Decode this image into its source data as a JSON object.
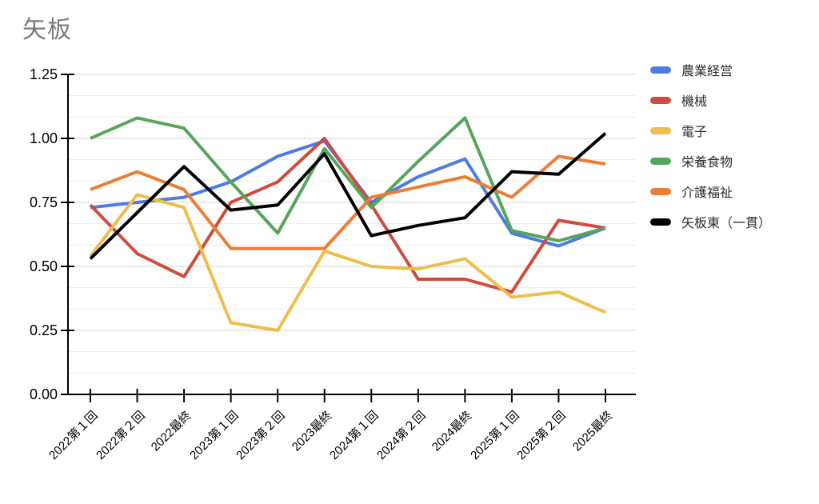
{
  "title": "矢板",
  "chart_data": {
    "type": "line",
    "title": "矢板",
    "categories": [
      "2022第１回",
      "2022第２回",
      "2022最終",
      "2023第１回",
      "2023第２回",
      "2023最終",
      "2024第１回",
      "2024第２回",
      "2024最終",
      "2025第１回",
      "2025第２回",
      "2025最終"
    ],
    "series": [
      {
        "name": "農業経営",
        "color": "#4D7CE3",
        "values": [
          0.73,
          0.75,
          0.77,
          0.83,
          0.93,
          0.99,
          0.75,
          0.85,
          0.92,
          0.63,
          0.58,
          0.65
        ]
      },
      {
        "name": "機械",
        "color": "#CF4B3E",
        "values": [
          0.74,
          0.55,
          0.46,
          0.75,
          0.83,
          1.0,
          0.74,
          0.45,
          0.45,
          0.4,
          0.68,
          0.65
        ]
      },
      {
        "name": "電子",
        "color": "#EFBD4B",
        "values": [
          0.54,
          0.78,
          0.73,
          0.28,
          0.25,
          0.56,
          0.5,
          0.49,
          0.53,
          0.38,
          0.4,
          0.32
        ]
      },
      {
        "name": "栄養食物",
        "color": "#57A55C",
        "values": [
          1.0,
          1.08,
          1.04,
          0.83,
          0.63,
          0.96,
          0.73,
          0.91,
          1.08,
          0.64,
          0.6,
          0.65
        ]
      },
      {
        "name": "介護福祉",
        "color": "#EC7E33",
        "values": [
          0.8,
          0.87,
          0.8,
          0.57,
          0.57,
          0.57,
          0.77,
          0.81,
          0.85,
          0.77,
          0.93,
          0.9
        ]
      },
      {
        "name": "矢板東（一貫）",
        "color": "#000000",
        "values": [
          0.53,
          0.71,
          0.89,
          0.72,
          0.74,
          0.94,
          0.62,
          0.66,
          0.69,
          0.87,
          0.86,
          1.02
        ]
      }
    ],
    "xlabel": "",
    "ylabel": "",
    "ylim": [
      0,
      1.25
    ],
    "y_ticks": [
      "0.00",
      "0.25",
      "0.50",
      "0.75",
      "1.00",
      "1.25"
    ],
    "minor_gridlines_per_interval": 2,
    "grid": true,
    "legend_position": "right",
    "line_width": 4
  }
}
